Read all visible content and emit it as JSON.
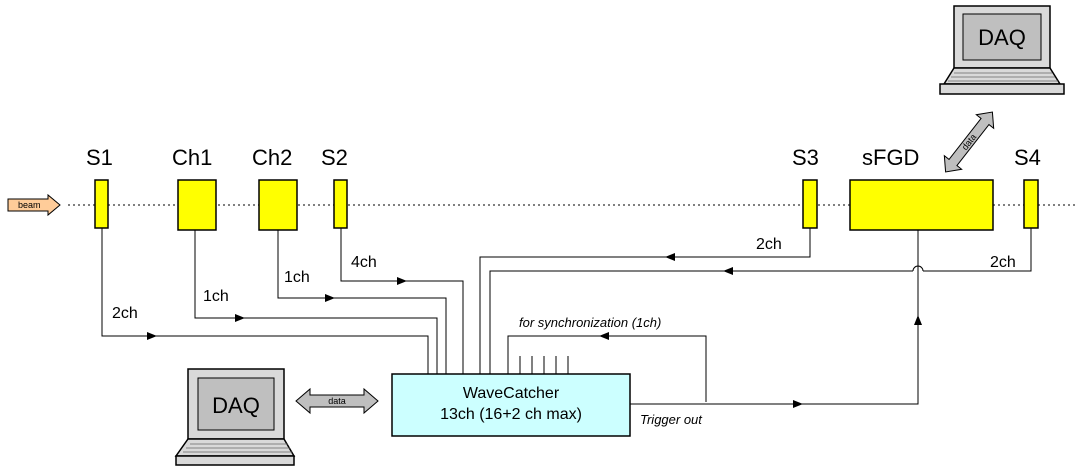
{
  "beam": {
    "label": "beam"
  },
  "detectors": {
    "s1": "S1",
    "ch1": "Ch1",
    "ch2": "Ch2",
    "s2": "S2",
    "s3": "S3",
    "sfgd": "sFGD",
    "s4": "S4"
  },
  "channels": {
    "s1": "2ch",
    "ch1": "1ch",
    "ch2": "1ch",
    "s2": "4ch",
    "s3": "2ch",
    "s4": "2ch"
  },
  "wavecatcher": {
    "title": "WaveCatcher",
    "subtitle": "13ch (16+2 ch max)"
  },
  "labels": {
    "sync": "for synchronization (1ch)",
    "trigger_out": "Trigger out",
    "data_bottom": "data",
    "data_top": "data"
  },
  "daq": {
    "bottom_label": "DAQ",
    "top_label": "DAQ"
  },
  "colors": {
    "detector": "#ffff00",
    "wavecatcher": "#ccffff",
    "beam_arrow": "#ffcc99",
    "data_arrow": "#bfbfbf",
    "laptop": "#d9d9d9"
  }
}
